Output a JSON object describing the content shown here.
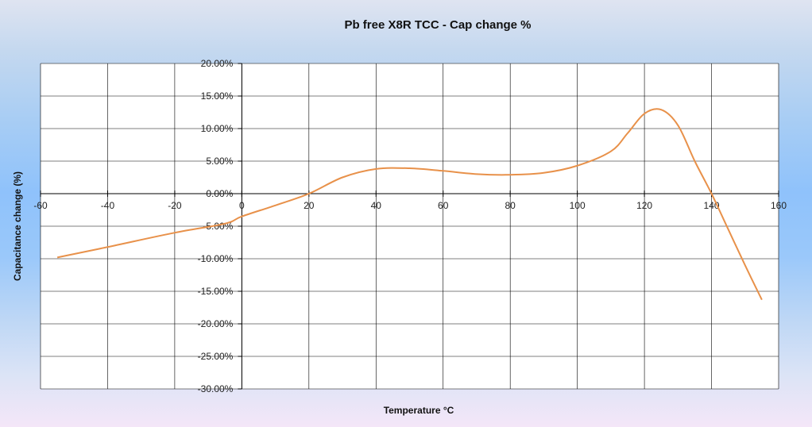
{
  "chart_data": {
    "type": "line",
    "title": "Pb free X8R TCC - Cap change %",
    "xlabel": "Temperature °C",
    "ylabel": "Capacitance change (%)",
    "xlim": [
      -60,
      160
    ],
    "ylim": [
      -30,
      20
    ],
    "x_ticks": [
      -60,
      -40,
      -20,
      0,
      20,
      40,
      60,
      80,
      100,
      120,
      140,
      160
    ],
    "x_tick_labels": [
      "-60",
      "-40",
      "-20",
      "0",
      "20",
      "40",
      "60",
      "80",
      "100",
      "120",
      "140",
      "160"
    ],
    "y_ticks": [
      20,
      15,
      10,
      5,
      0,
      -5,
      -10,
      -15,
      -20,
      -25,
      -30
    ],
    "y_tick_labels": [
      "20.00%",
      "15.00%",
      "10.00%",
      "5.00%",
      "0.00%",
      "-5.00%",
      "-10.00%",
      "-15.00%",
      "-20.00%",
      "-25.00%",
      "-30.00%"
    ],
    "grid": true,
    "legend": false,
    "series_color": "#e8914a",
    "series": [
      {
        "x": [
          -55,
          -40,
          -20,
          -5,
          0,
          10,
          20,
          30,
          40,
          50,
          60,
          70,
          80,
          90,
          100,
          110,
          115,
          120,
          125,
          130,
          135,
          140,
          145,
          150,
          155
        ],
        "values": [
          -9.8,
          -8.2,
          -6.0,
          -4.6,
          -3.5,
          -1.8,
          0.0,
          2.5,
          3.8,
          3.9,
          3.5,
          3.0,
          2.9,
          3.2,
          4.3,
          6.5,
          9.3,
          12.3,
          12.9,
          10.5,
          5.0,
          0.0,
          -5.5,
          -11.0,
          -16.3
        ]
      }
    ]
  }
}
